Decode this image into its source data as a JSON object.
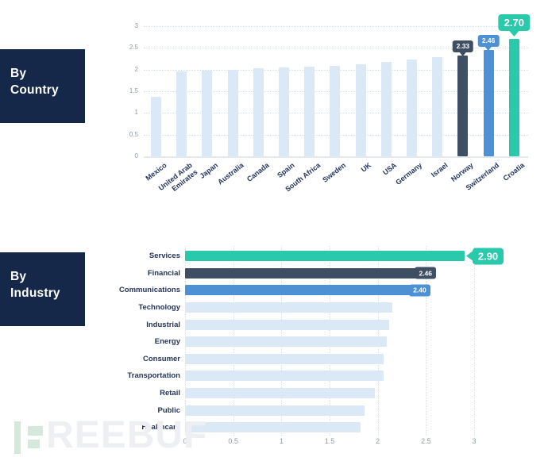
{
  "sections": {
    "country": {
      "line1": "By",
      "line2": "Country"
    },
    "industry": {
      "line1": "By",
      "line2": "Industry"
    }
  },
  "colors": {
    "navy_box": "#152849",
    "bar_light": "#dbe8f6",
    "bar_dark": "#3e4e63",
    "bar_blue": "#4e90d4",
    "bar_teal": "#2ac9ac",
    "grid": "#d7dde4",
    "tick_text": "#8e9aa9",
    "label_text": "#24345c",
    "badge_text": "#ffffff"
  },
  "watermark": {
    "brand_text": "REEBUF",
    "logo": "freebuf-mark",
    "logo_color": "#d4e9dc",
    "text_color": "#edeff2"
  },
  "chart_data": [
    {
      "type": "bar",
      "orientation": "vertical",
      "title": "By Country",
      "ylabel": "",
      "xlabel": "",
      "ylim": [
        0,
        3
      ],
      "y_ticks": [
        "0",
        "0.5",
        "1",
        "1.5",
        "2",
        "2.5",
        "3"
      ],
      "grid": "dotted-horizontal",
      "bars": [
        {
          "label": "Mexico",
          "value": 1.38,
          "color": "light"
        },
        {
          "label": "United Arab\nEmirates",
          "value": 1.95,
          "color": "light"
        },
        {
          "label": "Japan",
          "value": 1.98,
          "color": "light"
        },
        {
          "label": "Australia",
          "value": 2.0,
          "color": "light"
        },
        {
          "label": "Canada",
          "value": 2.03,
          "color": "light"
        },
        {
          "label": "Spain",
          "value": 2.05,
          "color": "light"
        },
        {
          "label": "South Africa",
          "value": 2.07,
          "color": "light"
        },
        {
          "label": "Sweden",
          "value": 2.08,
          "color": "light"
        },
        {
          "label": "UK",
          "value": 2.13,
          "color": "light"
        },
        {
          "label": "USA",
          "value": 2.18,
          "color": "light"
        },
        {
          "label": "Germany",
          "value": 2.23,
          "color": "light"
        },
        {
          "label": "Israel",
          "value": 2.28,
          "color": "light"
        },
        {
          "label": "Norway",
          "value": 2.33,
          "color": "dark",
          "badge": "2.33",
          "badge_size": "small"
        },
        {
          "label": "Switzerland",
          "value": 2.46,
          "color": "blue",
          "badge": "2.46",
          "badge_size": "small"
        },
        {
          "label": "Croatia",
          "value": 2.7,
          "color": "teal",
          "badge": "2.70",
          "badge_size": "large"
        }
      ]
    },
    {
      "type": "bar",
      "orientation": "horizontal",
      "title": "By Industry",
      "xlabel": "",
      "ylabel": "",
      "xlim": [
        0,
        3
      ],
      "x_ticks": [
        "0",
        "0.5",
        "1",
        "1.5",
        "2",
        "2.5",
        "3"
      ],
      "grid": "dotted-vertical",
      "bars": [
        {
          "label": "Services",
          "value": 2.9,
          "color": "teal",
          "badge": "2.90",
          "badge_size": "large"
        },
        {
          "label": "Financial",
          "value": 2.46,
          "color": "dark",
          "badge": "2.46",
          "badge_size": "small"
        },
        {
          "label": "Communications",
          "value": 2.4,
          "color": "blue",
          "badge": "2.40",
          "badge_size": "small"
        },
        {
          "label": "Technology",
          "value": 2.15,
          "color": "light"
        },
        {
          "label": "Industrial",
          "value": 2.12,
          "color": "light"
        },
        {
          "label": "Energy",
          "value": 2.09,
          "color": "light"
        },
        {
          "label": "Consumer",
          "value": 2.06,
          "color": "light"
        },
        {
          "label": "Transportation",
          "value": 2.06,
          "color": "light"
        },
        {
          "label": "Retail",
          "value": 1.97,
          "color": "light"
        },
        {
          "label": "Public",
          "value": 1.86,
          "color": "light"
        },
        {
          "label": "Healthcare",
          "value": 1.82,
          "color": "light"
        }
      ]
    }
  ]
}
